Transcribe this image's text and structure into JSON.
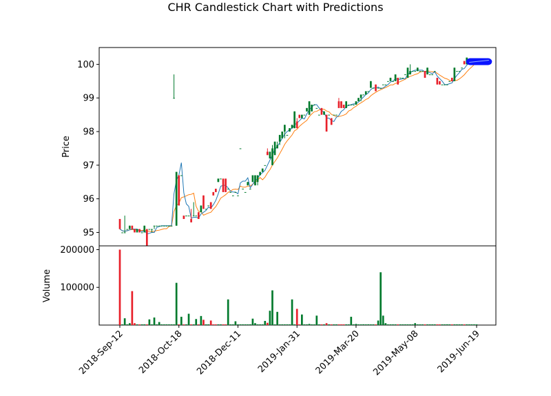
{
  "chart_data": {
    "type": "candlestick",
    "title": "CHR Candlestick Chart with Predictions",
    "price_panel": {
      "ylabel": "Price",
      "ylim": [
        94.6,
        100.5
      ],
      "yticks": [
        95,
        96,
        97,
        98,
        99,
        100
      ]
    },
    "volume_panel": {
      "ylabel": "Volume",
      "ylim": [
        0,
        210000
      ],
      "yticks": [
        100000,
        200000
      ]
    },
    "x_tick_labels": [
      {
        "i": 0,
        "label": "2018-Sep-12"
      },
      {
        "i": 24,
        "label": "2018-Oct-18"
      },
      {
        "i": 48,
        "label": "2018-Dec-11"
      },
      {
        "i": 72,
        "label": "2019-Jan-31"
      },
      {
        "i": 96,
        "label": "2019-Mar-20"
      },
      {
        "i": 120,
        "label": "2019-May-08"
      },
      {
        "i": 145,
        "label": "2019-Jun-19"
      }
    ],
    "colors": {
      "up": "#007a2c",
      "down": "#e8202a",
      "ma_fast": "#1f77b4",
      "ma_slow": "#ff7f0e",
      "prediction": "#0a14ff"
    },
    "candles": [
      [
        95.4,
        95.4,
        95.1,
        95.1
      ],
      [
        95.0,
        95.0,
        95.0,
        95.0
      ],
      [
        95.0,
        95.5,
        95.0,
        95.0
      ],
      [
        95.1,
        95.1,
        95.1,
        95.1
      ],
      [
        95.1,
        95.2,
        95.1,
        95.2
      ],
      [
        95.2,
        95.2,
        95.1,
        95.1
      ],
      [
        95.1,
        95.1,
        95.0,
        95.0
      ],
      [
        95.0,
        95.1,
        95.0,
        95.1
      ],
      [
        95.1,
        95.1,
        95.0,
        95.0
      ],
      [
        95.0,
        95.0,
        95.0,
        95.0
      ],
      [
        95.0,
        95.2,
        95.0,
        95.2
      ],
      [
        95.1,
        95.1,
        94.6,
        94.6
      ],
      [
        95.1,
        95.1,
        95.1,
        95.1
      ],
      [
        95.1,
        95.1,
        95.0,
        95.1
      ],
      [
        95.2,
        95.2,
        95.1,
        95.2
      ],
      [
        95.2,
        95.2,
        95.2,
        95.2
      ],
      [
        95.2,
        95.2,
        95.2,
        95.2
      ],
      [
        95.2,
        95.2,
        95.2,
        95.2
      ],
      [
        95.2,
        95.2,
        95.2,
        95.2
      ],
      [
        95.2,
        95.2,
        95.2,
        95.2
      ],
      [
        95.2,
        95.2,
        95.2,
        95.2
      ],
      [
        95.2,
        95.2,
        95.2,
        95.2
      ],
      [
        99.0,
        99.7,
        99.0,
        99.0
      ],
      [
        95.2,
        96.8,
        95.2,
        96.8
      ],
      [
        96.7,
        96.7,
        95.8,
        95.8
      ],
      [
        96.7,
        96.7,
        96.7,
        96.7
      ],
      [
        95.5,
        95.5,
        95.4,
        95.4
      ],
      [
        95.5,
        95.5,
        95.5,
        95.5
      ],
      [
        95.5,
        95.5,
        95.5,
        95.5
      ],
      [
        95.4,
        95.7,
        95.3,
        95.3
      ],
      [
        95.5,
        95.9,
        95.5,
        95.5
      ],
      [
        95.5,
        95.5,
        95.5,
        95.5
      ],
      [
        95.6,
        95.6,
        95.4,
        95.4
      ],
      [
        95.6,
        95.8,
        95.6,
        95.8
      ],
      [
        96.1,
        96.1,
        95.7,
        95.7
      ],
      [
        95.7,
        95.7,
        95.7,
        95.7
      ],
      [
        95.8,
        95.8,
        95.8,
        95.8
      ],
      [
        95.9,
        95.9,
        95.7,
        95.7
      ],
      [
        96.2,
        96.2,
        96.1,
        96.1
      ],
      [
        96.3,
        96.3,
        96.2,
        96.2
      ],
      [
        96.5,
        96.6,
        96.5,
        96.6
      ],
      [
        96.6,
        96.6,
        96.6,
        96.6
      ],
      [
        96.6,
        96.6,
        96.2,
        96.2
      ],
      [
        96.6,
        96.6,
        96.2,
        96.2
      ],
      [
        96.3,
        96.3,
        96.3,
        96.3
      ],
      [
        96.2,
        96.2,
        96.2,
        96.2
      ],
      [
        96.1,
        96.1,
        96.1,
        96.1
      ],
      [
        96.2,
        96.2,
        96.2,
        96.2
      ],
      [
        96.1,
        96.1,
        96.1,
        96.1
      ],
      [
        97.5,
        97.5,
        97.5,
        97.5
      ],
      [
        96.3,
        96.3,
        96.3,
        96.3
      ],
      [
        96.2,
        96.2,
        96.2,
        96.2
      ],
      [
        96.4,
        96.5,
        96.4,
        96.5
      ],
      [
        96.3,
        96.3,
        96.3,
        96.3
      ],
      [
        96.5,
        96.7,
        96.5,
        96.7
      ],
      [
        96.4,
        96.7,
        96.4,
        96.7
      ],
      [
        96.5,
        96.7,
        96.4,
        96.7
      ],
      [
        96.7,
        96.8,
        96.7,
        96.8
      ],
      [
        96.8,
        96.9,
        96.8,
        96.9
      ],
      [
        97.0,
        97.0,
        97.0,
        97.0
      ],
      [
        97.4,
        97.5,
        97.3,
        97.3
      ],
      [
        97.2,
        97.4,
        97.2,
        97.4
      ],
      [
        97.0,
        97.6,
        97.0,
        97.5
      ],
      [
        97.3,
        97.7,
        97.3,
        97.7
      ],
      [
        97.5,
        97.7,
        97.5,
        97.6
      ],
      [
        97.7,
        97.9,
        97.6,
        97.9
      ],
      [
        97.8,
        98.0,
        97.8,
        98.0
      ],
      [
        98.0,
        98.2,
        97.8,
        98.2
      ],
      [
        97.9,
        97.9,
        97.9,
        97.9
      ],
      [
        98.0,
        98.1,
        98.0,
        98.1
      ],
      [
        98.1,
        98.2,
        98.1,
        98.2
      ],
      [
        98.1,
        98.6,
        98.1,
        98.6
      ],
      [
        98.3,
        98.4,
        98.1,
        98.1
      ],
      [
        98.5,
        98.5,
        98.4,
        98.4
      ],
      [
        98.4,
        98.5,
        98.4,
        98.5
      ],
      [
        98.5,
        98.5,
        98.5,
        98.5
      ],
      [
        98.6,
        98.7,
        98.6,
        98.7
      ],
      [
        98.5,
        98.9,
        98.5,
        98.9
      ],
      [
        98.6,
        98.8,
        98.6,
        98.8
      ],
      [
        98.8,
        98.8,
        98.8,
        98.8
      ],
      [
        98.7,
        98.7,
        98.7,
        98.7
      ],
      [
        98.5,
        98.5,
        98.5,
        98.5
      ],
      [
        98.7,
        98.7,
        98.5,
        98.5
      ],
      [
        98.5,
        98.6,
        98.5,
        98.6
      ],
      [
        98.5,
        98.5,
        98.0,
        98.0
      ],
      [
        98.5,
        98.5,
        98.5,
        98.5
      ],
      [
        98.4,
        98.4,
        98.2,
        98.2
      ],
      [
        98.5,
        98.5,
        98.5,
        98.5
      ],
      [
        98.5,
        98.5,
        98.5,
        98.5
      ],
      [
        98.9,
        99.0,
        98.7,
        98.7
      ],
      [
        98.9,
        98.9,
        98.7,
        98.7
      ],
      [
        98.8,
        98.8,
        98.7,
        98.7
      ],
      [
        98.7,
        98.9,
        98.7,
        98.9
      ],
      [
        98.8,
        98.8,
        98.8,
        98.8
      ],
      [
        98.8,
        98.8,
        98.8,
        98.8
      ],
      [
        98.8,
        98.8,
        98.8,
        98.8
      ],
      [
        98.8,
        98.9,
        98.8,
        98.9
      ],
      [
        98.9,
        99.0,
        98.9,
        99.0
      ],
      [
        99.0,
        99.1,
        98.9,
        99.1
      ],
      [
        99.1,
        99.1,
        99.1,
        99.1
      ],
      [
        99.1,
        99.2,
        99.1,
        99.2
      ],
      [
        99.2,
        99.2,
        99.2,
        99.2
      ],
      [
        99.3,
        99.5,
        99.3,
        99.5
      ],
      [
        99.3,
        99.3,
        99.3,
        99.3
      ],
      [
        99.4,
        99.4,
        99.2,
        99.2
      ],
      [
        99.3,
        99.3,
        99.3,
        99.3
      ],
      [
        99.3,
        99.3,
        99.3,
        99.3
      ],
      [
        99.4,
        99.4,
        99.4,
        99.4
      ],
      [
        99.4,
        99.4,
        99.4,
        99.4
      ],
      [
        99.5,
        99.5,
        99.5,
        99.5
      ],
      [
        99.5,
        99.6,
        99.5,
        99.6
      ],
      [
        99.5,
        99.5,
        99.5,
        99.5
      ],
      [
        99.5,
        99.7,
        99.5,
        99.7
      ],
      [
        99.6,
        99.6,
        99.4,
        99.4
      ],
      [
        99.6,
        99.6,
        99.6,
        99.6
      ],
      [
        99.6,
        99.6,
        99.6,
        99.6
      ],
      [
        99.7,
        99.7,
        99.7,
        99.7
      ],
      [
        99.6,
        99.9,
        99.6,
        99.9
      ],
      [
        99.7,
        100.0,
        99.7,
        99.8
      ],
      [
        99.8,
        99.8,
        99.8,
        99.8
      ],
      [
        99.8,
        99.8,
        99.8,
        99.8
      ],
      [
        99.8,
        99.9,
        99.8,
        99.9
      ],
      [
        99.8,
        99.8,
        99.8,
        99.8
      ],
      [
        99.8,
        99.8,
        99.8,
        99.8
      ],
      [
        99.8,
        99.8,
        99.6,
        99.6
      ],
      [
        99.7,
        99.9,
        99.7,
        99.9
      ],
      [
        99.7,
        99.7,
        99.7,
        99.7
      ],
      [
        99.7,
        99.7,
        99.7,
        99.7
      ],
      [
        99.8,
        99.8,
        99.8,
        99.8
      ],
      [
        99.6,
        99.6,
        99.4,
        99.4
      ],
      [
        99.5,
        99.5,
        99.4,
        99.4
      ],
      [
        99.4,
        99.4,
        99.4,
        99.4
      ],
      [
        99.4,
        99.4,
        99.4,
        99.4
      ],
      [
        99.4,
        99.4,
        99.4,
        99.4
      ],
      [
        99.5,
        99.5,
        99.5,
        99.5
      ],
      [
        99.6,
        99.6,
        99.5,
        99.5
      ],
      [
        99.5,
        99.9,
        99.5,
        99.9
      ],
      [
        99.8,
        99.8,
        99.8,
        99.8
      ],
      [
        99.8,
        99.8,
        99.8,
        99.8
      ],
      [
        99.9,
        99.9,
        99.9,
        99.9
      ],
      [
        100.1,
        100.1,
        100.0,
        100.0
      ],
      [
        100.0,
        100.2,
        100.0,
        100.2
      ],
      [
        100.1,
        100.1,
        100.1,
        100.1
      ],
      [
        100.1,
        100.1,
        100.1,
        100.1
      ],
      [
        100.1,
        100.1,
        100.1,
        100.1
      ],
      [
        100.1,
        100.1,
        100.1,
        100.1
      ]
    ],
    "volume": [
      200000,
      0,
      18000,
      0,
      5000,
      90000,
      5000,
      0,
      0,
      0,
      0,
      0,
      15000,
      0,
      20000,
      0,
      8000,
      0,
      0,
      0,
      0,
      0,
      0,
      112000,
      0,
      22000,
      0,
      0,
      30000,
      0,
      0,
      16000,
      0,
      24000,
      14000,
      0,
      0,
      12000,
      0,
      0,
      0,
      0,
      0,
      0,
      68000,
      0,
      0,
      10000,
      0,
      0,
      0,
      0,
      0,
      2000,
      17000,
      5000,
      0,
      0,
      0,
      11000,
      6000,
      38000,
      92000,
      0,
      35000,
      0,
      0,
      0,
      0,
      0,
      68000,
      0,
      43000,
      0,
      28000,
      0,
      0,
      3000,
      0,
      0,
      25000,
      0,
      0,
      0,
      5000,
      0,
      0,
      0,
      0,
      0,
      0,
      0,
      0,
      0,
      22000,
      0,
      3000,
      0,
      0,
      2000,
      0,
      2000,
      0,
      0,
      0,
      12000,
      140000,
      25000,
      5000,
      0,
      0,
      0,
      0,
      0,
      0,
      0,
      0,
      0,
      0,
      0,
      5000,
      0,
      0,
      0,
      0,
      0,
      0,
      0,
      0,
      0,
      0,
      0,
      0,
      2000,
      0,
      0,
      0,
      0,
      0,
      0,
      0,
      0,
      0,
      0,
      0,
      0,
      0,
      0,
      0,
      0,
      0,
      0,
      0,
      0,
      0,
      0
    ],
    "prediction": {
      "start_index": 142,
      "end_index": 150,
      "value": 100.08
    }
  }
}
